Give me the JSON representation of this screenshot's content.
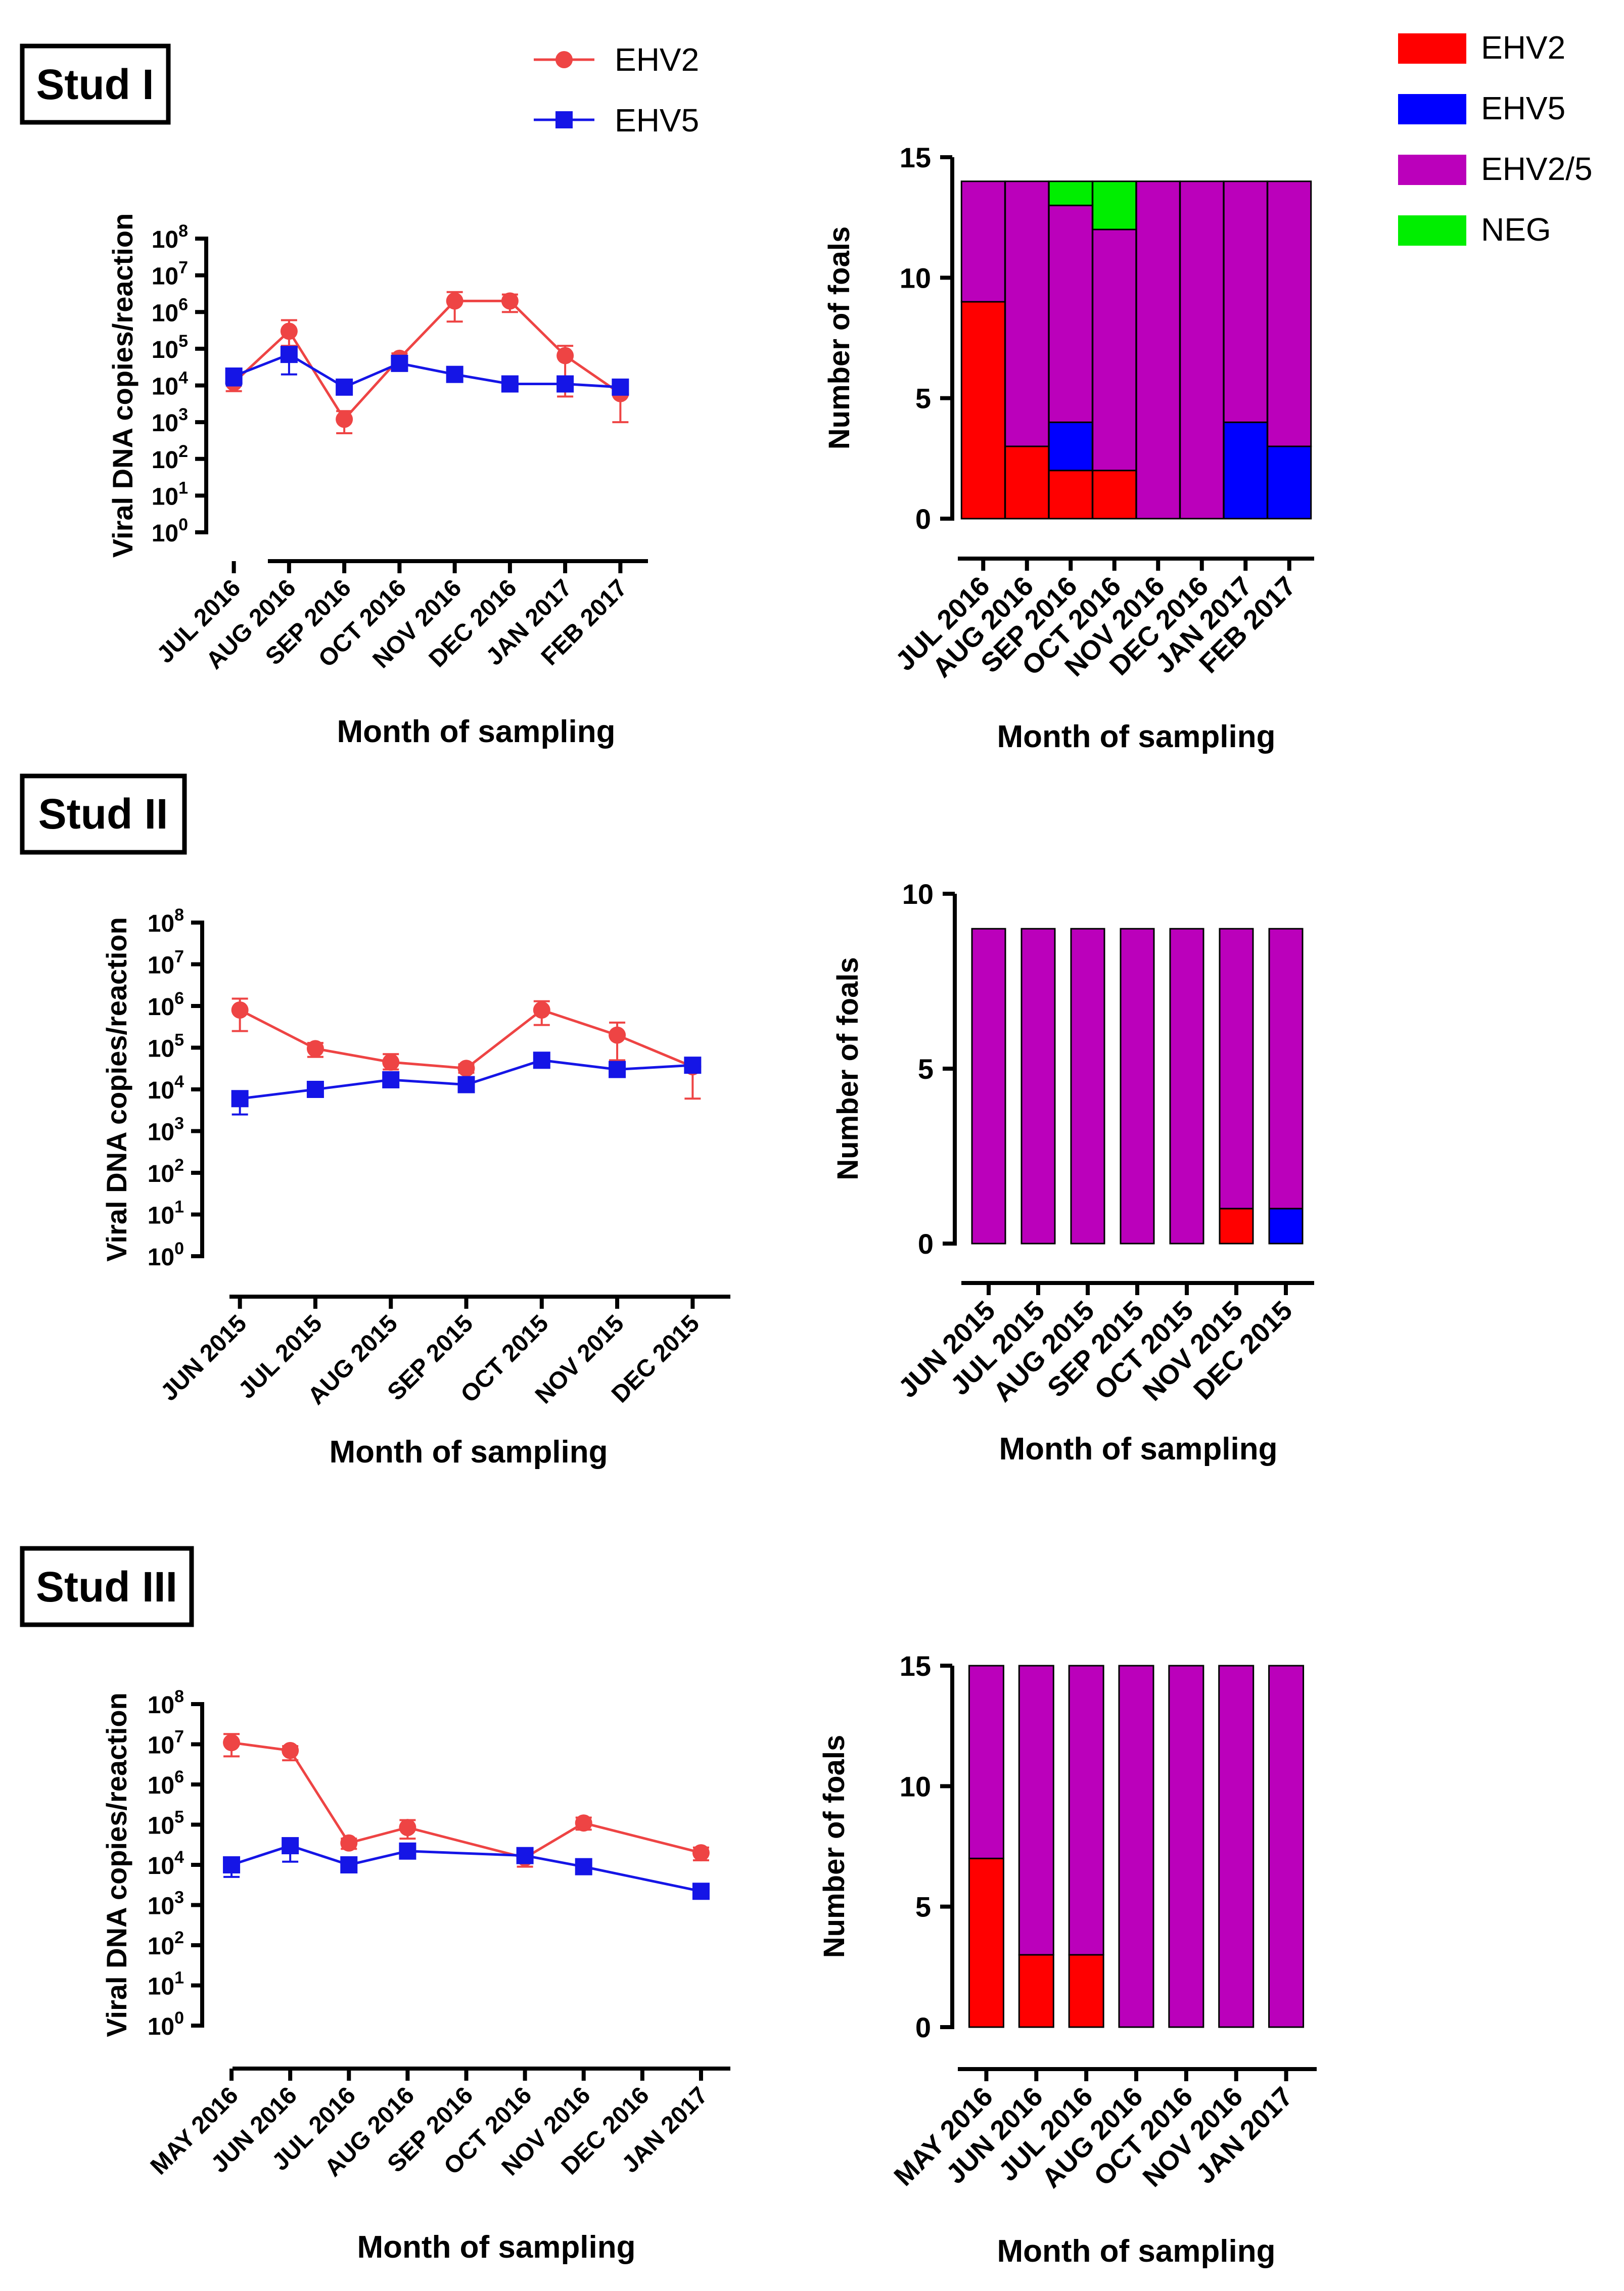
{
  "legend_line": {
    "items": [
      {
        "name": "EHV2",
        "color": "#EE4444",
        "marker": "circle"
      },
      {
        "name": "EHV5",
        "color": "#1515E6",
        "marker": "square"
      }
    ]
  },
  "legend_bar": {
    "items": [
      {
        "name": "EHV2",
        "color": "#FF0000"
      },
      {
        "name": "EHV5",
        "color": "#0000FF"
      },
      {
        "name": "EHV2/5",
        "color": "#BB00BB"
      },
      {
        "name": "NEG",
        "color": "#00EE00"
      }
    ]
  },
  "studs": [
    {
      "title": "Stud I"
    },
    {
      "title": "Stud II"
    },
    {
      "title": "Stud III"
    }
  ],
  "chart_data": [
    {
      "id": "stud1-line",
      "type": "line",
      "ylabel": "Viral DNA copies/reaction",
      "xlabel": "Month of sampling",
      "yscale": "log10",
      "ylim": [
        1,
        100000000
      ],
      "ytick_exponents": [
        0,
        1,
        2,
        3,
        4,
        5,
        6,
        7,
        8
      ],
      "categories": [
        "JUL 2016",
        "AUG 2016",
        "SEP 2016",
        "OCT 2016",
        "NOV 2016",
        "DEC 2016",
        "JAN 2017",
        "FEB 2017"
      ],
      "series": [
        {
          "name": "EHV2",
          "values": [
            12000,
            300000,
            1200,
            55000,
            2000000,
            2000000,
            65000,
            6000
          ],
          "err_low": [
            7000,
            120000,
            500,
            25000,
            550000,
            1000000,
            5000,
            1000
          ],
          "err_high": [
            20000,
            600000,
            2000,
            75000,
            3500000,
            3000000,
            120000,
            10000
          ]
        },
        {
          "name": "EHV5",
          "values": [
            18000,
            70000,
            9000,
            40000,
            20000,
            11000,
            11000,
            9000
          ],
          "err_low": [
            10000,
            20000,
            6000,
            25000,
            15000,
            9000,
            8000,
            7000
          ],
          "err_high": [
            25000,
            100000,
            12000,
            50000,
            25000,
            13000,
            14000,
            11000
          ]
        }
      ]
    },
    {
      "id": "stud1-bar",
      "type": "bar",
      "stacked": true,
      "ylabel": "Number of foals",
      "xlabel": "Month of sampling",
      "ylim": [
        0,
        15
      ],
      "yticks": [
        0,
        5,
        10,
        15
      ],
      "categories": [
        "JUL 2016",
        "AUG 2016",
        "SEP 2016",
        "OCT 2016",
        "NOV 2016",
        "DEC 2016",
        "JAN 2017",
        "FEB 2017"
      ],
      "series": [
        {
          "name": "EHV2",
          "values": [
            9,
            3,
            2,
            2,
            0,
            0,
            0,
            0
          ]
        },
        {
          "name": "EHV5",
          "values": [
            0,
            0,
            2,
            0,
            0,
            0,
            4,
            3
          ]
        },
        {
          "name": "EHV2/5",
          "values": [
            5,
            11,
            9,
            10,
            14,
            14,
            10,
            11
          ]
        },
        {
          "name": "NEG",
          "values": [
            0,
            0,
            1,
            2,
            0,
            0,
            0,
            0
          ]
        }
      ]
    },
    {
      "id": "stud2-line",
      "type": "line",
      "ylabel": "Viral DNA copies/reaction",
      "xlabel": "Month of sampling",
      "yscale": "log10",
      "ylim": [
        1,
        100000000
      ],
      "ytick_exponents": [
        0,
        1,
        2,
        3,
        4,
        5,
        6,
        7,
        8
      ],
      "categories": [
        "JUN 2015",
        "JUL 2015",
        "AUG 2015",
        "SEP 2015",
        "OCT 2015",
        "NOV 2015",
        "DEC 2015"
      ],
      "series": [
        {
          "name": "EHV2",
          "values": [
            800000,
            95000,
            45000,
            32000,
            800000,
            200000,
            35000
          ],
          "err_low": [
            250000,
            60000,
            30000,
            25000,
            350000,
            50000,
            6000
          ],
          "err_high": [
            1500000,
            130000,
            70000,
            40000,
            1300000,
            400000,
            45000
          ]
        },
        {
          "name": "EHV5",
          "values": [
            6000,
            10000,
            17000,
            13000,
            50000,
            30000,
            38000
          ],
          "err_low": [
            2500,
            8000,
            12000,
            10000,
            40000,
            20000,
            30000
          ],
          "err_high": [
            9000,
            12000,
            22000,
            16000,
            60000,
            40000,
            46000
          ]
        }
      ]
    },
    {
      "id": "stud2-bar",
      "type": "bar",
      "stacked": true,
      "ylabel": "Number of foals",
      "xlabel": "Month of sampling",
      "ylim": [
        0,
        10
      ],
      "yticks": [
        0,
        5,
        10
      ],
      "categories": [
        "JUN 2015",
        "JUL 2015",
        "AUG 2015",
        "SEP 2015",
        "OCT 2015",
        "NOV 2015",
        "DEC 2015"
      ],
      "series": [
        {
          "name": "EHV2",
          "values": [
            0,
            0,
            0,
            0,
            0,
            1,
            0
          ]
        },
        {
          "name": "EHV5",
          "values": [
            0,
            0,
            0,
            0,
            0,
            0,
            1
          ]
        },
        {
          "name": "EHV2/5",
          "values": [
            9,
            9,
            9,
            9,
            9,
            8,
            8
          ]
        },
        {
          "name": "NEG",
          "values": [
            0,
            0,
            0,
            0,
            0,
            0,
            0
          ]
        }
      ]
    },
    {
      "id": "stud3-line",
      "type": "line",
      "ylabel": "Viral DNA copies/reaction",
      "xlabel": "Month of sampling",
      "yscale": "log10",
      "ylim": [
        1,
        100000000
      ],
      "ytick_exponents": [
        0,
        1,
        2,
        3,
        4,
        5,
        6,
        7,
        8
      ],
      "categories": [
        "MAY 2016",
        "JUN 2016",
        "JUL 2016",
        "AUG 2016",
        "SEP 2016",
        "OCT 2016",
        "NOV 2016",
        "DEC 2016",
        "JAN 2017"
      ],
      "series": [
        {
          "name": "EHV2",
          "values": [
            11000000,
            7000000,
            35000,
            85000,
            null,
            15000,
            110000,
            null,
            20000
          ],
          "err_low": [
            5000000,
            4000000,
            25000,
            45000,
            null,
            9000,
            75000,
            null,
            13000
          ],
          "err_high": [
            18000000,
            9000000,
            45000,
            130000,
            null,
            21000,
            150000,
            null,
            27000
          ]
        },
        {
          "name": "EHV5",
          "values": [
            10000,
            30000,
            10000,
            22000,
            null,
            17000,
            9000,
            null,
            2200
          ],
          "err_low": [
            5000,
            12000,
            8000,
            18000,
            null,
            14000,
            7000,
            null,
            1800
          ],
          "err_high": [
            15000,
            45000,
            12000,
            26000,
            null,
            20000,
            11000,
            null,
            2600
          ]
        }
      ]
    },
    {
      "id": "stud3-bar",
      "type": "bar",
      "stacked": true,
      "ylabel": "Number of foals",
      "xlabel": "Month of sampling",
      "ylim": [
        0,
        15
      ],
      "yticks": [
        0,
        5,
        10,
        15
      ],
      "categories": [
        "MAY 2016",
        "JUN 2016",
        "JUL 2016",
        "AUG 2016",
        "OCT 2016",
        "NOV 2016",
        "JAN 2017"
      ],
      "series": [
        {
          "name": "EHV2",
          "values": [
            7,
            3,
            3,
            0,
            0,
            0,
            0
          ]
        },
        {
          "name": "EHV5",
          "values": [
            0,
            0,
            0,
            0,
            0,
            0,
            0
          ]
        },
        {
          "name": "EHV2/5",
          "values": [
            8,
            12,
            12,
            15,
            15,
            15,
            15
          ]
        },
        {
          "name": "NEG",
          "values": [
            0,
            0,
            0,
            0,
            0,
            0,
            0
          ]
        }
      ]
    }
  ]
}
